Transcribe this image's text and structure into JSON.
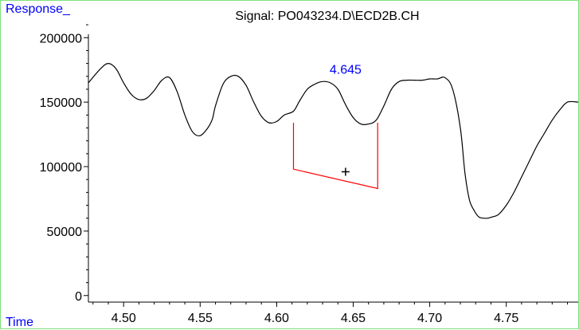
{
  "chart_data": {
    "type": "line",
    "title": "Signal: PO043234.D\\ECD2B.CH",
    "ylabel": "Response_",
    "xlabel": "Time",
    "xlim": [
      4.477,
      4.797
    ],
    "ylim": [
      -2000,
      215000
    ],
    "yticks": [
      0,
      50000,
      100000,
      150000,
      200000
    ],
    "xticks": [
      4.5,
      4.55,
      4.6,
      4.65,
      4.7,
      4.75
    ],
    "grid": false,
    "series": [
      {
        "x": [
          4.477,
          4.485,
          4.49,
          4.495,
          4.5,
          4.505,
          4.51,
          4.515,
          4.52,
          4.525,
          4.53,
          4.535,
          4.54,
          4.545,
          4.55,
          4.555,
          4.558,
          4.56,
          4.565,
          4.57,
          4.575,
          4.58,
          4.585,
          4.59,
          4.595,
          4.6,
          4.605,
          4.611,
          4.615,
          4.62,
          4.625,
          4.63,
          4.635,
          4.64,
          4.645,
          4.65,
          4.655,
          4.66,
          4.665,
          4.67,
          4.675,
          4.68,
          4.685,
          4.69,
          4.695,
          4.7,
          4.705,
          4.71,
          4.715,
          4.72,
          4.723,
          4.726,
          4.729,
          4.732,
          4.735,
          4.738,
          4.741,
          4.745,
          4.75,
          4.755,
          4.76,
          4.765,
          4.77,
          4.775,
          4.78,
          4.785,
          4.79,
          4.797
        ],
        "y": [
          165000,
          176000,
          180000,
          176000,
          165000,
          156000,
          152000,
          153000,
          159000,
          167000,
          169000,
          158000,
          140000,
          127000,
          124000,
          130000,
          137000,
          147000,
          164000,
          170000,
          170000,
          163000,
          150000,
          139000,
          134000,
          135000,
          140000,
          143000,
          151000,
          160000,
          164000,
          166000,
          165000,
          160000,
          148000,
          138000,
          133000,
          133000,
          136000,
          147000,
          160000,
          166000,
          167000,
          167000,
          167000,
          168000,
          168000,
          169000,
          160000,
          130000,
          95000,
          74000,
          66000,
          61000,
          60000,
          60000,
          61000,
          63000,
          70000,
          80000,
          92000,
          104000,
          116000,
          126000,
          136000,
          144000,
          150000,
          150000
        ]
      }
    ],
    "peak": {
      "label": "4.645",
      "label_x": 4.645,
      "label_y": 172000,
      "baseline": [
        [
          4.611,
          134000
        ],
        [
          4.611,
          98000
        ],
        [
          4.666,
          83000
        ],
        [
          4.666,
          134000
        ]
      ],
      "marker": "+",
      "marker_x": 4.645,
      "marker_y": 96000
    },
    "colors": {
      "trace": "#000000",
      "baseline": "#ff0000",
      "peak_label": "#0000ff",
      "axis_titles": "#0000ff",
      "frame": "#7fe07f"
    }
  }
}
